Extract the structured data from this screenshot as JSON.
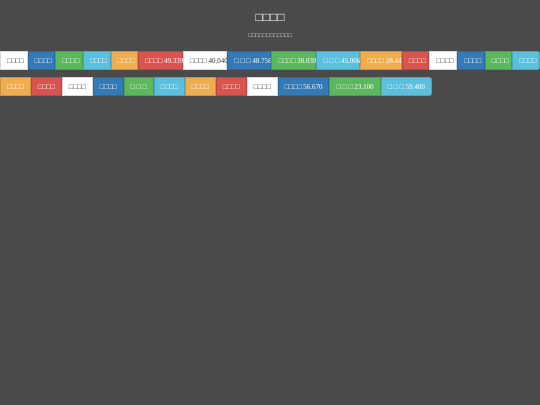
{
  "header": {
    "title": "□□□□",
    "subtitle": "□□□□□□□□□□□□"
  },
  "rows": [
    [
      {
        "label": "□□□□",
        "color": "#ffffff"
      },
      {
        "label": "□□□□",
        "color": "#337ab7"
      },
      {
        "label": "□□□□",
        "color": "#5cb85c"
      },
      {
        "label": "□□□□",
        "color": "#5bc0de"
      },
      {
        "label": "□□□□",
        "color": "#f0ad4e"
      },
      {
        "label": "□□□□ 49.339",
        "color": "#d9534f"
      },
      {
        "label": "□□□□ 40.040",
        "color": "#ffffff"
      },
      {
        "label": "□ □ □ 48.756",
        "color": "#337ab7"
      },
      {
        "label": "□□□□ 38.039",
        "color": "#5cb85c"
      },
      {
        "label": "□ □ □ 45.006",
        "color": "#5bc0de"
      },
      {
        "label": "□□□□ 28.44",
        "color": "#f0ad4e"
      },
      {
        "label": "□□□□",
        "color": "#d9534f"
      },
      {
        "label": "□□□□",
        "color": "#ffffff"
      },
      {
        "label": "□□□□",
        "color": "#337ab7"
      },
      {
        "label": "□□□□",
        "color": "#5cb85c"
      },
      {
        "label": "□□□□",
        "color": "#5bc0de"
      }
    ],
    [
      {
        "label": "□□□□",
        "color": "#f0ad4e"
      },
      {
        "label": "□□□□",
        "color": "#d9534f"
      },
      {
        "label": "□□□□",
        "color": "#ffffff"
      },
      {
        "label": "□□□□",
        "color": "#337ab7"
      },
      {
        "label": "□ □ □",
        "color": "#5cb85c"
      },
      {
        "label": "□□□□",
        "color": "#5bc0de"
      },
      {
        "label": "□□□□",
        "color": "#f0ad4e"
      },
      {
        "label": "□□□□",
        "color": "#d9534f"
      },
      {
        "label": "□□□□",
        "color": "#ffffff"
      },
      {
        "label": "□□□□ 56.670",
        "color": "#337ab7"
      },
      {
        "label": "□ □ □ 23.100",
        "color": "#5cb85c"
      },
      {
        "label": "□ □ □ 59.480",
        "color": "#5bc0de"
      }
    ]
  ]
}
